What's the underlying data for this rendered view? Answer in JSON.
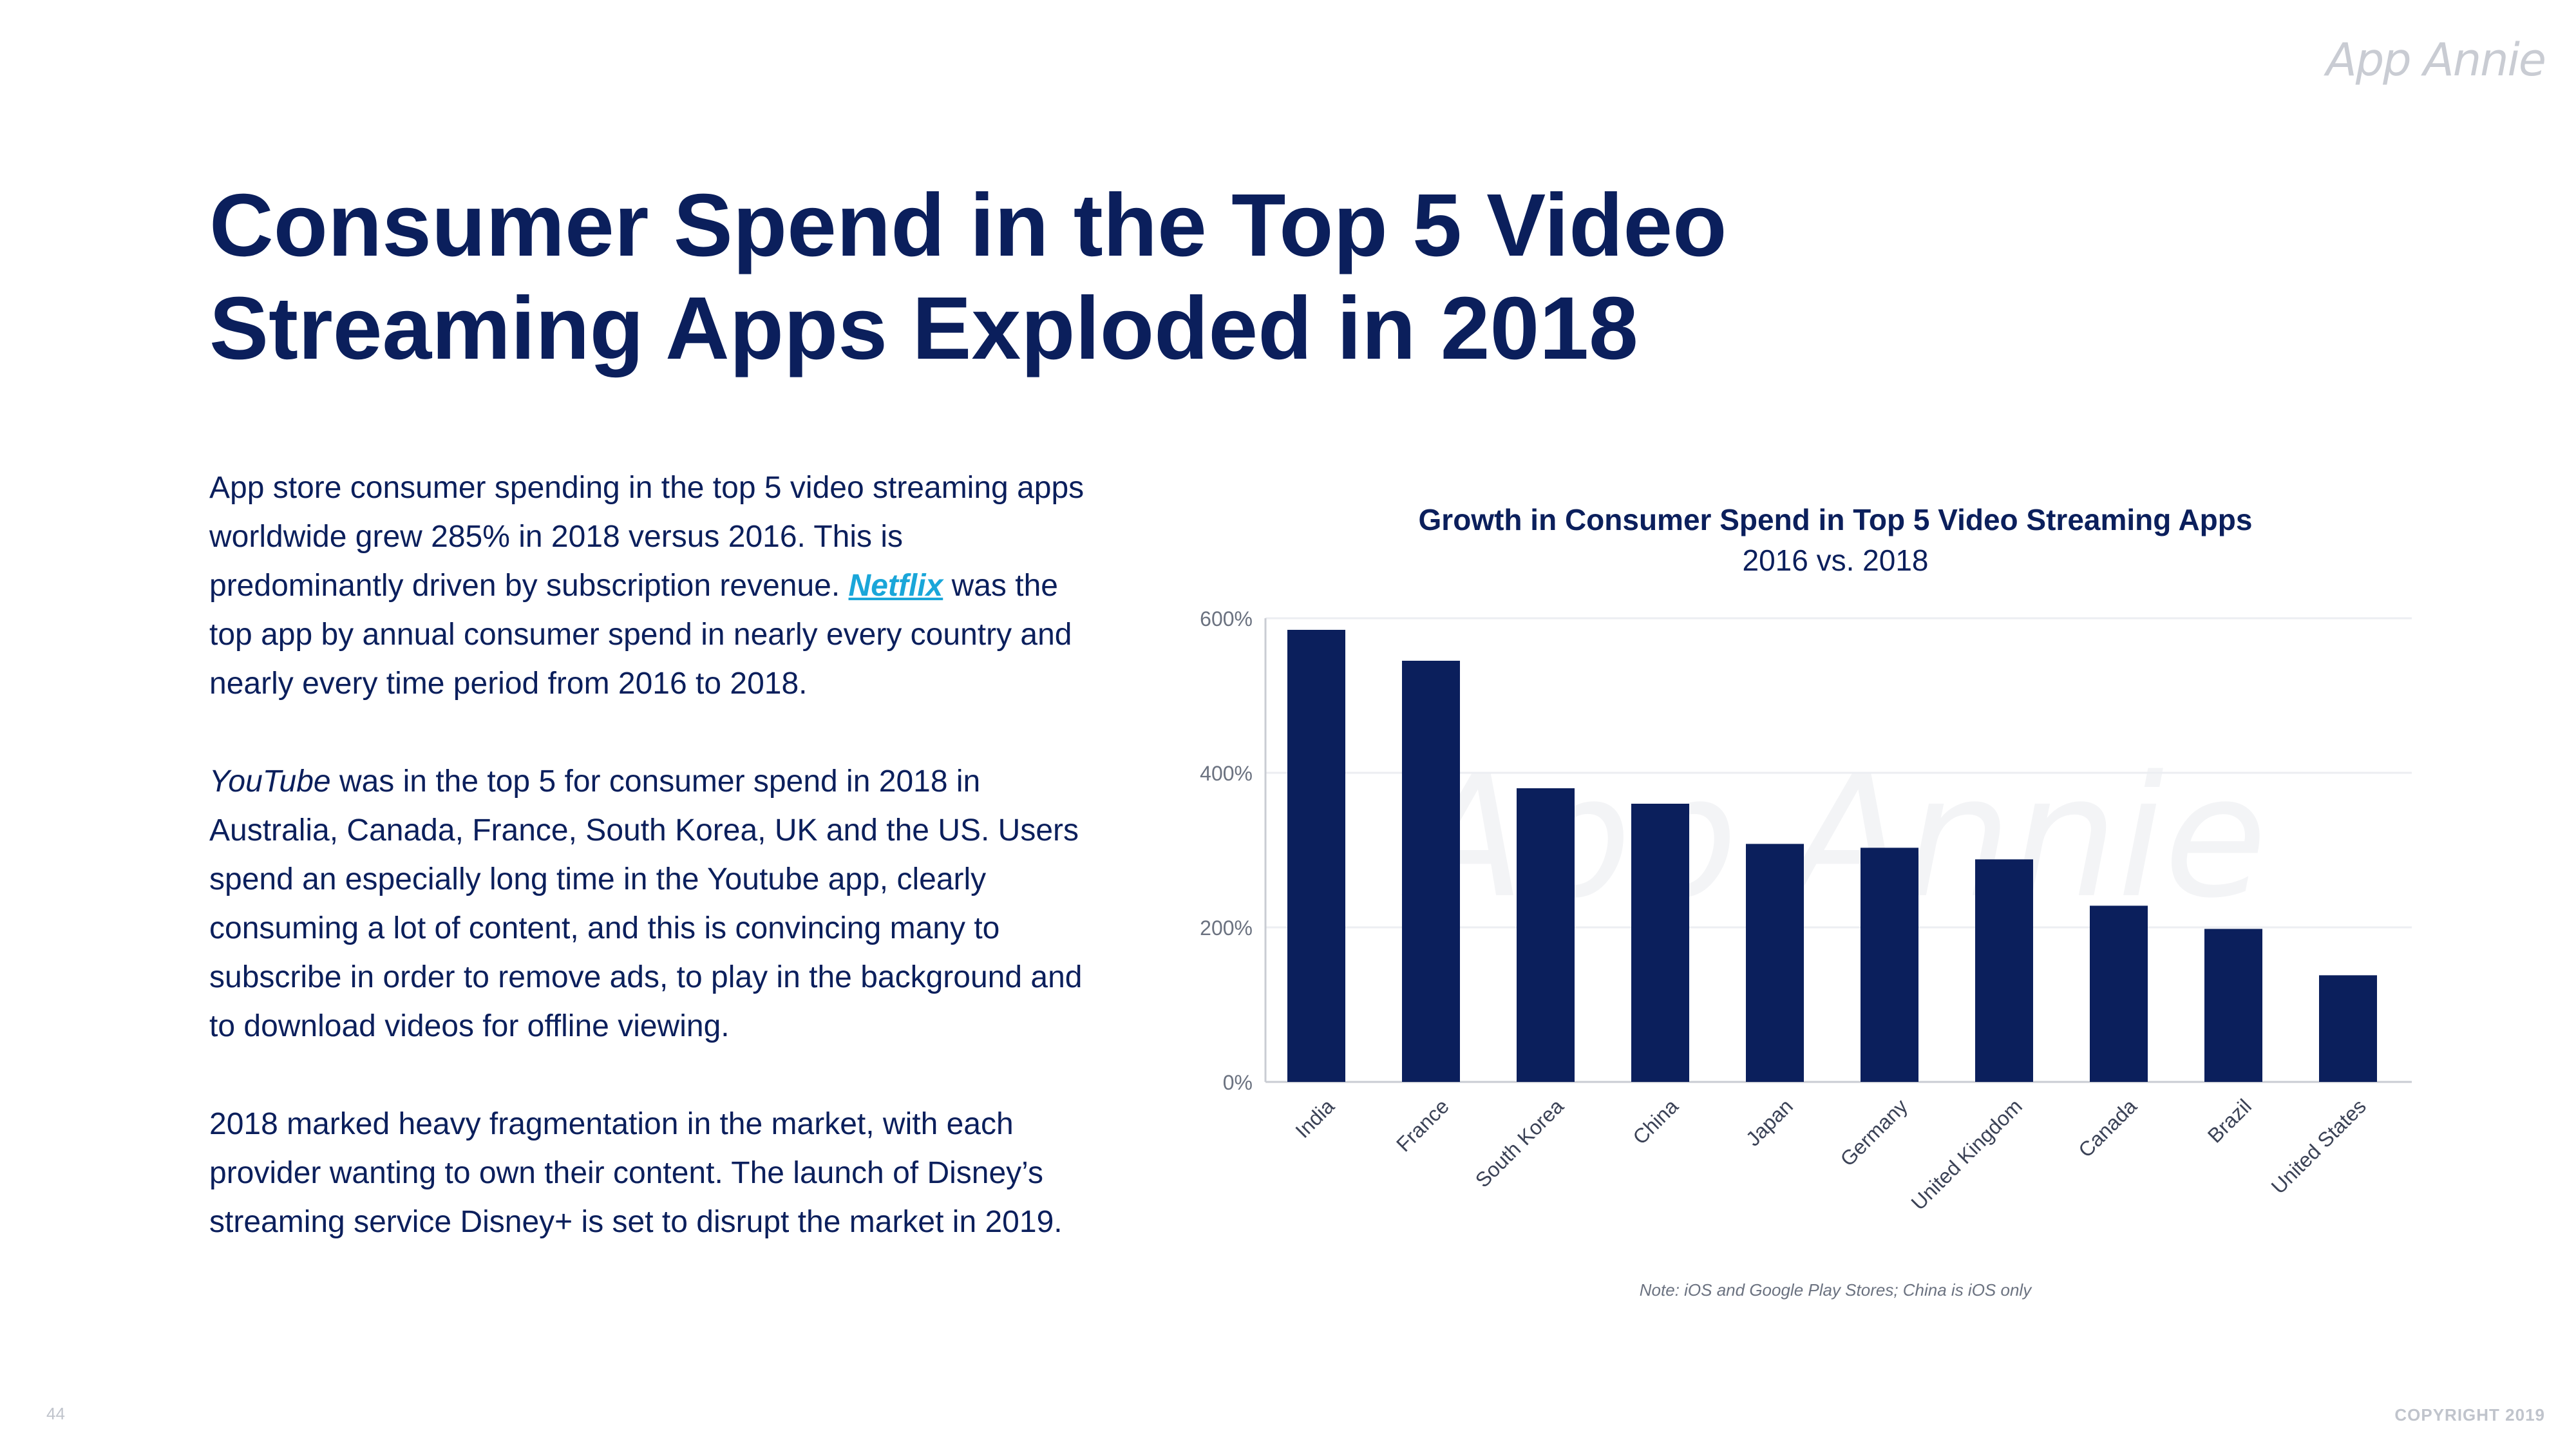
{
  "brand": {
    "logo_text": "App Annie",
    "watermark_text": "App Annie"
  },
  "slide": {
    "title_line1": "Consumer Spend in the Top 5 Video",
    "title_line2": "Streaming Apps Exploded in 2018",
    "p1_before": "App store consumer spending in the top 5 video streaming apps worldwide grew 285% in 2018 versus 2016. This is predominantly driven by subscription revenue. ",
    "p1_link": "Netflix",
    "p1_after": " was the top app by annual consumer spend in nearly every country and nearly every time period from 2016 to 2018.",
    "p2_em": "YouTube",
    "p2_rest": " was in the top 5 for consumer spend in 2018 in Australia, Canada, France, South Korea, UK and the US. Users spend an especially long time in the Youtube app, clearly consuming a lot of content, and this is convincing many to subscribe in order to remove ads, to play in the background and to download videos for offline viewing.",
    "p3": "2018 marked heavy fragmentation in the market, with each provider wanting to own their content. The launch of Disney’s streaming service Disney+ is set to disrupt the market in 2019.",
    "note": "Note: iOS and Google Play Stores; China is iOS only",
    "page_number": "44",
    "copyright": "COPYRIGHT 2019"
  },
  "chart_data": {
    "type": "bar",
    "title": "Growth in Consumer Spend in Top 5 Video Streaming Apps",
    "subtitle": "2016 vs. 2018",
    "categories": [
      "India",
      "France",
      "South Korea",
      "China",
      "Japan",
      "Germany",
      "United Kingdom",
      "Canada",
      "Brazil",
      "United States"
    ],
    "values": [
      585,
      545,
      380,
      360,
      308,
      303,
      288,
      228,
      198,
      138
    ],
    "ylim": [
      0,
      600
    ],
    "yticks": [
      0,
      200,
      400,
      600
    ],
    "ytick_labels": [
      "0%",
      "200%",
      "400%",
      "600%"
    ],
    "grid": true,
    "bar_color": "#0b1f5c",
    "xlabel": "",
    "ylabel": ""
  }
}
